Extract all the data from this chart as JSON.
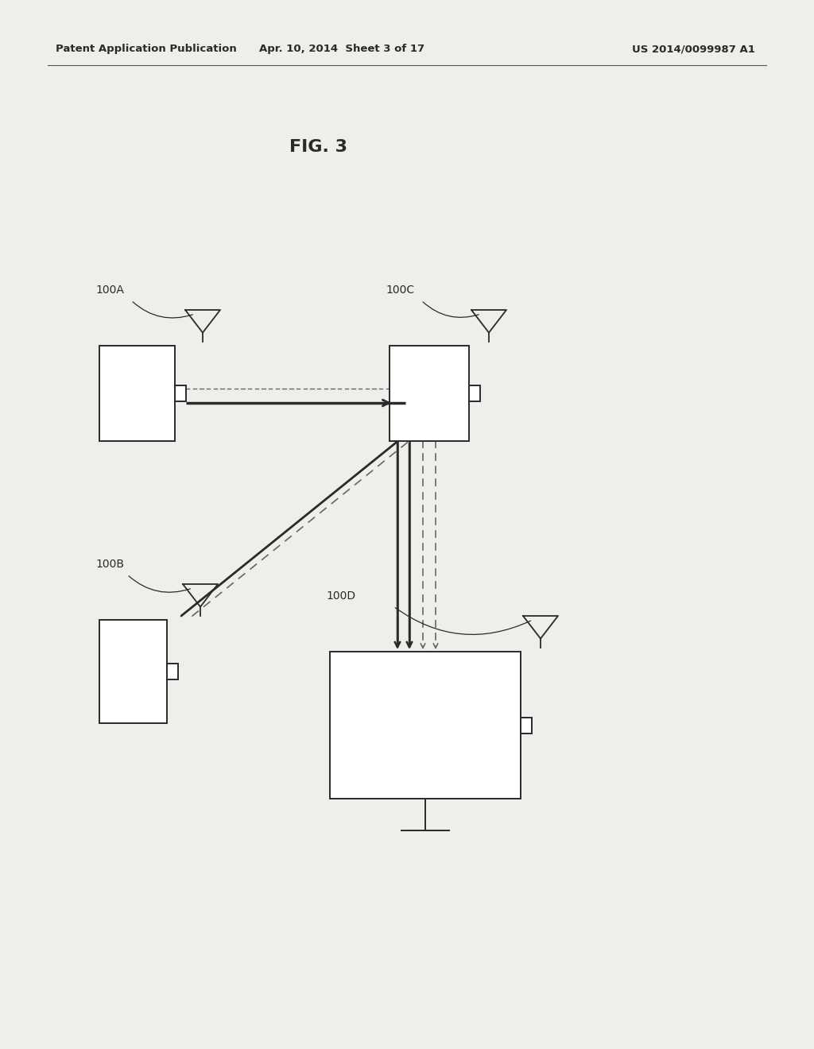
{
  "bg_color": "#f0eeeb",
  "header_left": "Patent Application Publication",
  "header_center": "Apr. 10, 2014  Sheet 3 of 17",
  "header_right": "US 2014/0099987 A1",
  "fig_label": "FIG. 3",
  "color_dark": "#2a2a2a",
  "color_gray": "#888888"
}
